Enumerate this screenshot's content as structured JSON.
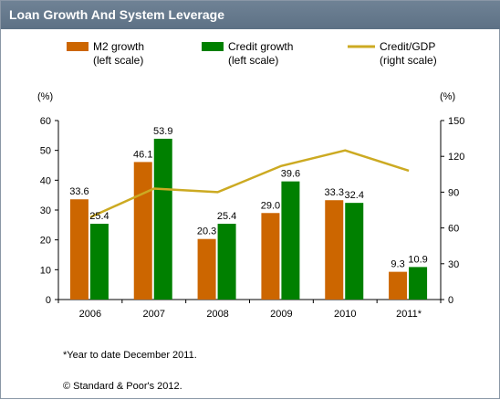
{
  "title": "Loan Growth And System Leverage",
  "legend": {
    "m2": {
      "line1": "M2 growth",
      "line2": "(left scale)"
    },
    "credit": {
      "line1": "Credit growth",
      "line2": "(left scale)"
    },
    "gdp": {
      "line1": "Credit/GDP",
      "line2": "(right scale)"
    }
  },
  "axis_unit_left": "(%)",
  "axis_unit_right": "(%)",
  "footnote": "*Year to date December 2011.",
  "copyright": "© Standard & Poor's 2012.",
  "colors": {
    "m2": "#cc6600",
    "credit": "#008000",
    "gdp": "#ccaa22"
  },
  "chart_data": {
    "type": "bar",
    "title": "Loan Growth And System Leverage",
    "categories": [
      "2006",
      "2007",
      "2008",
      "2009",
      "2010",
      "2011*"
    ],
    "series": [
      {
        "name": "M2 growth",
        "axis": "left",
        "type": "bar",
        "values": [
          33.6,
          46.1,
          20.3,
          29.0,
          33.3,
          9.3
        ],
        "labels": [
          "33.6",
          "46.1",
          "20.3",
          "29.0",
          "33.3",
          "9.3"
        ]
      },
      {
        "name": "Credit growth",
        "axis": "left",
        "type": "bar",
        "values": [
          25.4,
          53.9,
          25.4,
          39.6,
          32.4,
          10.9
        ],
        "labels": [
          "25.4",
          "53.9",
          "25.4",
          "39.6",
          "32.4",
          "10.9"
        ]
      },
      {
        "name": "Credit/GDP",
        "axis": "right",
        "type": "line",
        "values": [
          69,
          93,
          90,
          112,
          125,
          108
        ]
      }
    ],
    "ylim_left": [
      0,
      60
    ],
    "yticks_left": [
      "0",
      "10",
      "20",
      "30",
      "40",
      "50",
      "60"
    ],
    "ylim_right": [
      0,
      150
    ],
    "yticks_right": [
      "0",
      "30",
      "60",
      "90",
      "120",
      "150"
    ],
    "grid": false,
    "legend_position": "top"
  }
}
